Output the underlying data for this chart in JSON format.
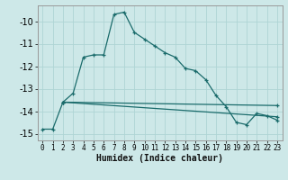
{
  "xlabel": "Humidex (Indice chaleur)",
  "ylabel": "",
  "bg_color": "#cde8e8",
  "grid_color": "#afd4d4",
  "line_color": "#1a6b6b",
  "xlim": [
    -0.5,
    23.5
  ],
  "ylim": [
    -15.3,
    -9.3
  ],
  "yticks": [
    -15,
    -14,
    -13,
    -12,
    -11,
    -10
  ],
  "xticks": [
    0,
    1,
    2,
    3,
    4,
    5,
    6,
    7,
    8,
    9,
    10,
    11,
    12,
    13,
    14,
    15,
    16,
    17,
    18,
    19,
    20,
    21,
    22,
    23
  ],
  "series1_x": [
    0,
    1,
    2,
    3,
    4,
    5,
    6,
    7,
    8,
    9,
    10,
    11,
    12,
    13,
    14,
    15,
    16,
    17,
    18,
    19,
    20,
    21,
    22,
    23
  ],
  "series1_y": [
    -14.8,
    -14.8,
    -13.6,
    -13.2,
    -11.6,
    -11.5,
    -11.5,
    -9.7,
    -9.6,
    -10.5,
    -10.8,
    -11.1,
    -11.4,
    -11.6,
    -12.1,
    -12.2,
    -12.6,
    -13.3,
    -13.8,
    -14.5,
    -14.6,
    -14.1,
    -14.2,
    -14.4
  ],
  "series2_x": [
    2,
    23
  ],
  "series2_y": [
    -13.6,
    -14.25
  ],
  "series3_x": [
    2,
    23
  ],
  "series3_y": [
    -13.6,
    -13.75
  ]
}
